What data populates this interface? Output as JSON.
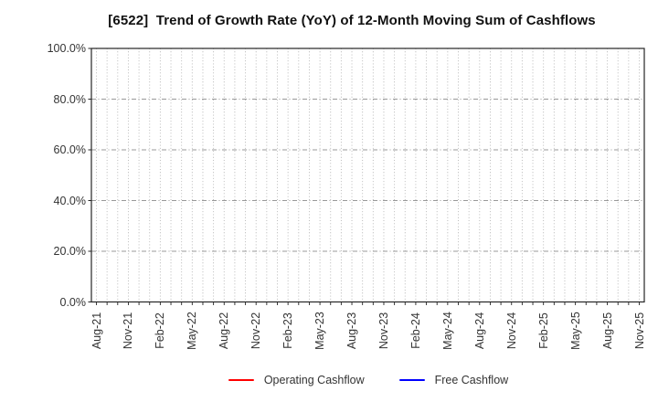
{
  "chart_data": {
    "type": "line",
    "title": "[6522]  Trend of Growth Rate (YoY) of 12-Month Moving Sum of Cashflows",
    "x_tick_labels": [
      "Aug-21",
      "Nov-21",
      "Feb-22",
      "May-22",
      "Aug-22",
      "Nov-22",
      "Feb-23",
      "May-23",
      "Aug-23",
      "Nov-23",
      "Feb-24",
      "May-24",
      "Aug-24",
      "Nov-24",
      "Feb-25",
      "May-25",
      "Aug-25",
      "Nov-25"
    ],
    "x_monthly_positions": 52,
    "x_label_every_n_months": 3,
    "y_tick_labels": [
      "0.0%",
      "20.0%",
      "40.0%",
      "60.0%",
      "80.0%",
      "100.0%"
    ],
    "y_tick_values": [
      0,
      20,
      40,
      60,
      80,
      100
    ],
    "ylim": [
      0,
      100
    ],
    "grid": true,
    "legend_position": "bottom",
    "axis_color": "#262626",
    "grid_color": "#aaaaaa",
    "tick_label_color": "#333333",
    "series": [
      {
        "name": "Operating Cashflow",
        "color": "#ff0000",
        "values": []
      },
      {
        "name": "Free Cashflow",
        "color": "#0000ff",
        "values": []
      }
    ]
  }
}
